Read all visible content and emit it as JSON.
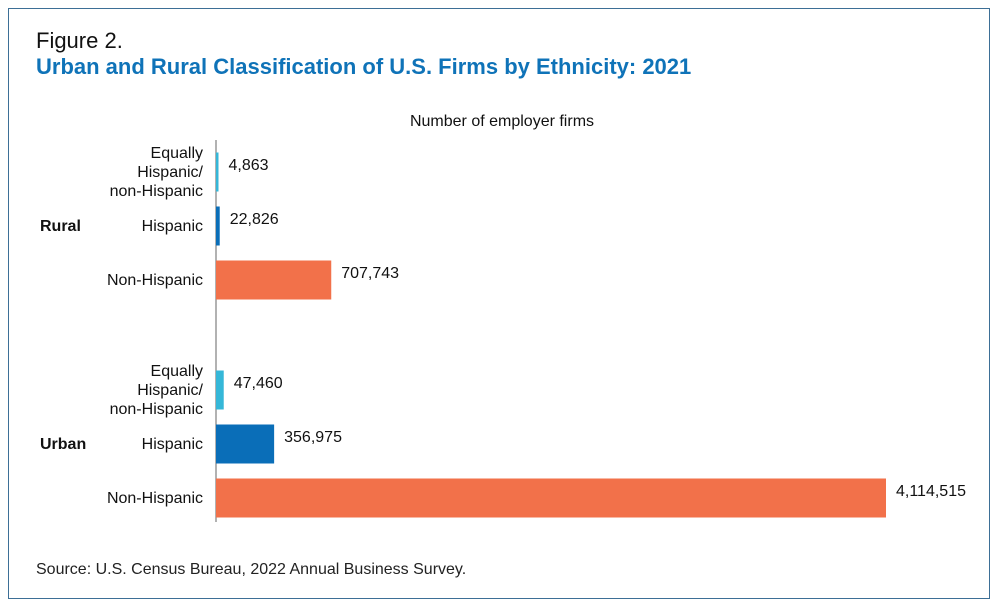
{
  "figure_label": "Figure 2.",
  "title": "Urban and Rural Classification of U.S. Firms by Ethnicity: 2021",
  "source": "Source: U.S. Census Bureau, 2022 Annual Business Survey.",
  "colors": {
    "equally": "#35b7d8",
    "hispanic": "#0a6eb8",
    "non_hispanic": "#f2714a",
    "title": "#0f73b8"
  },
  "chart_data": {
    "type": "bar",
    "orientation": "horizontal",
    "title": "Urban and Rural Classification of U.S. Firms by Ethnicity: 2021",
    "xlabel": "Number of employer firms",
    "ylabel": "",
    "grid": false,
    "groups": [
      {
        "name": "Rural",
        "bars": [
          {
            "category": [
              "Equally",
              "Hispanic/",
              "non-Hispanic"
            ],
            "value": 4863,
            "label": "4,863",
            "color_key": "equally"
          },
          {
            "category": [
              "Hispanic"
            ],
            "value": 22826,
            "label": "22,826",
            "color_key": "hispanic"
          },
          {
            "category": [
              "Non-Hispanic"
            ],
            "value": 707743,
            "label": "707,743",
            "color_key": "non_hispanic"
          }
        ]
      },
      {
        "name": "Urban",
        "bars": [
          {
            "category": [
              "Equally",
              "Hispanic/",
              "non-Hispanic"
            ],
            "value": 47460,
            "label": "47,460",
            "color_key": "equally"
          },
          {
            "category": [
              "Hispanic"
            ],
            "value": 356975,
            "label": "356,975",
            "color_key": "hispanic"
          },
          {
            "category": [
              "Non-Hispanic"
            ],
            "value": 4114515,
            "label": "4,114,515",
            "color_key": "non_hispanic"
          }
        ]
      }
    ]
  }
}
